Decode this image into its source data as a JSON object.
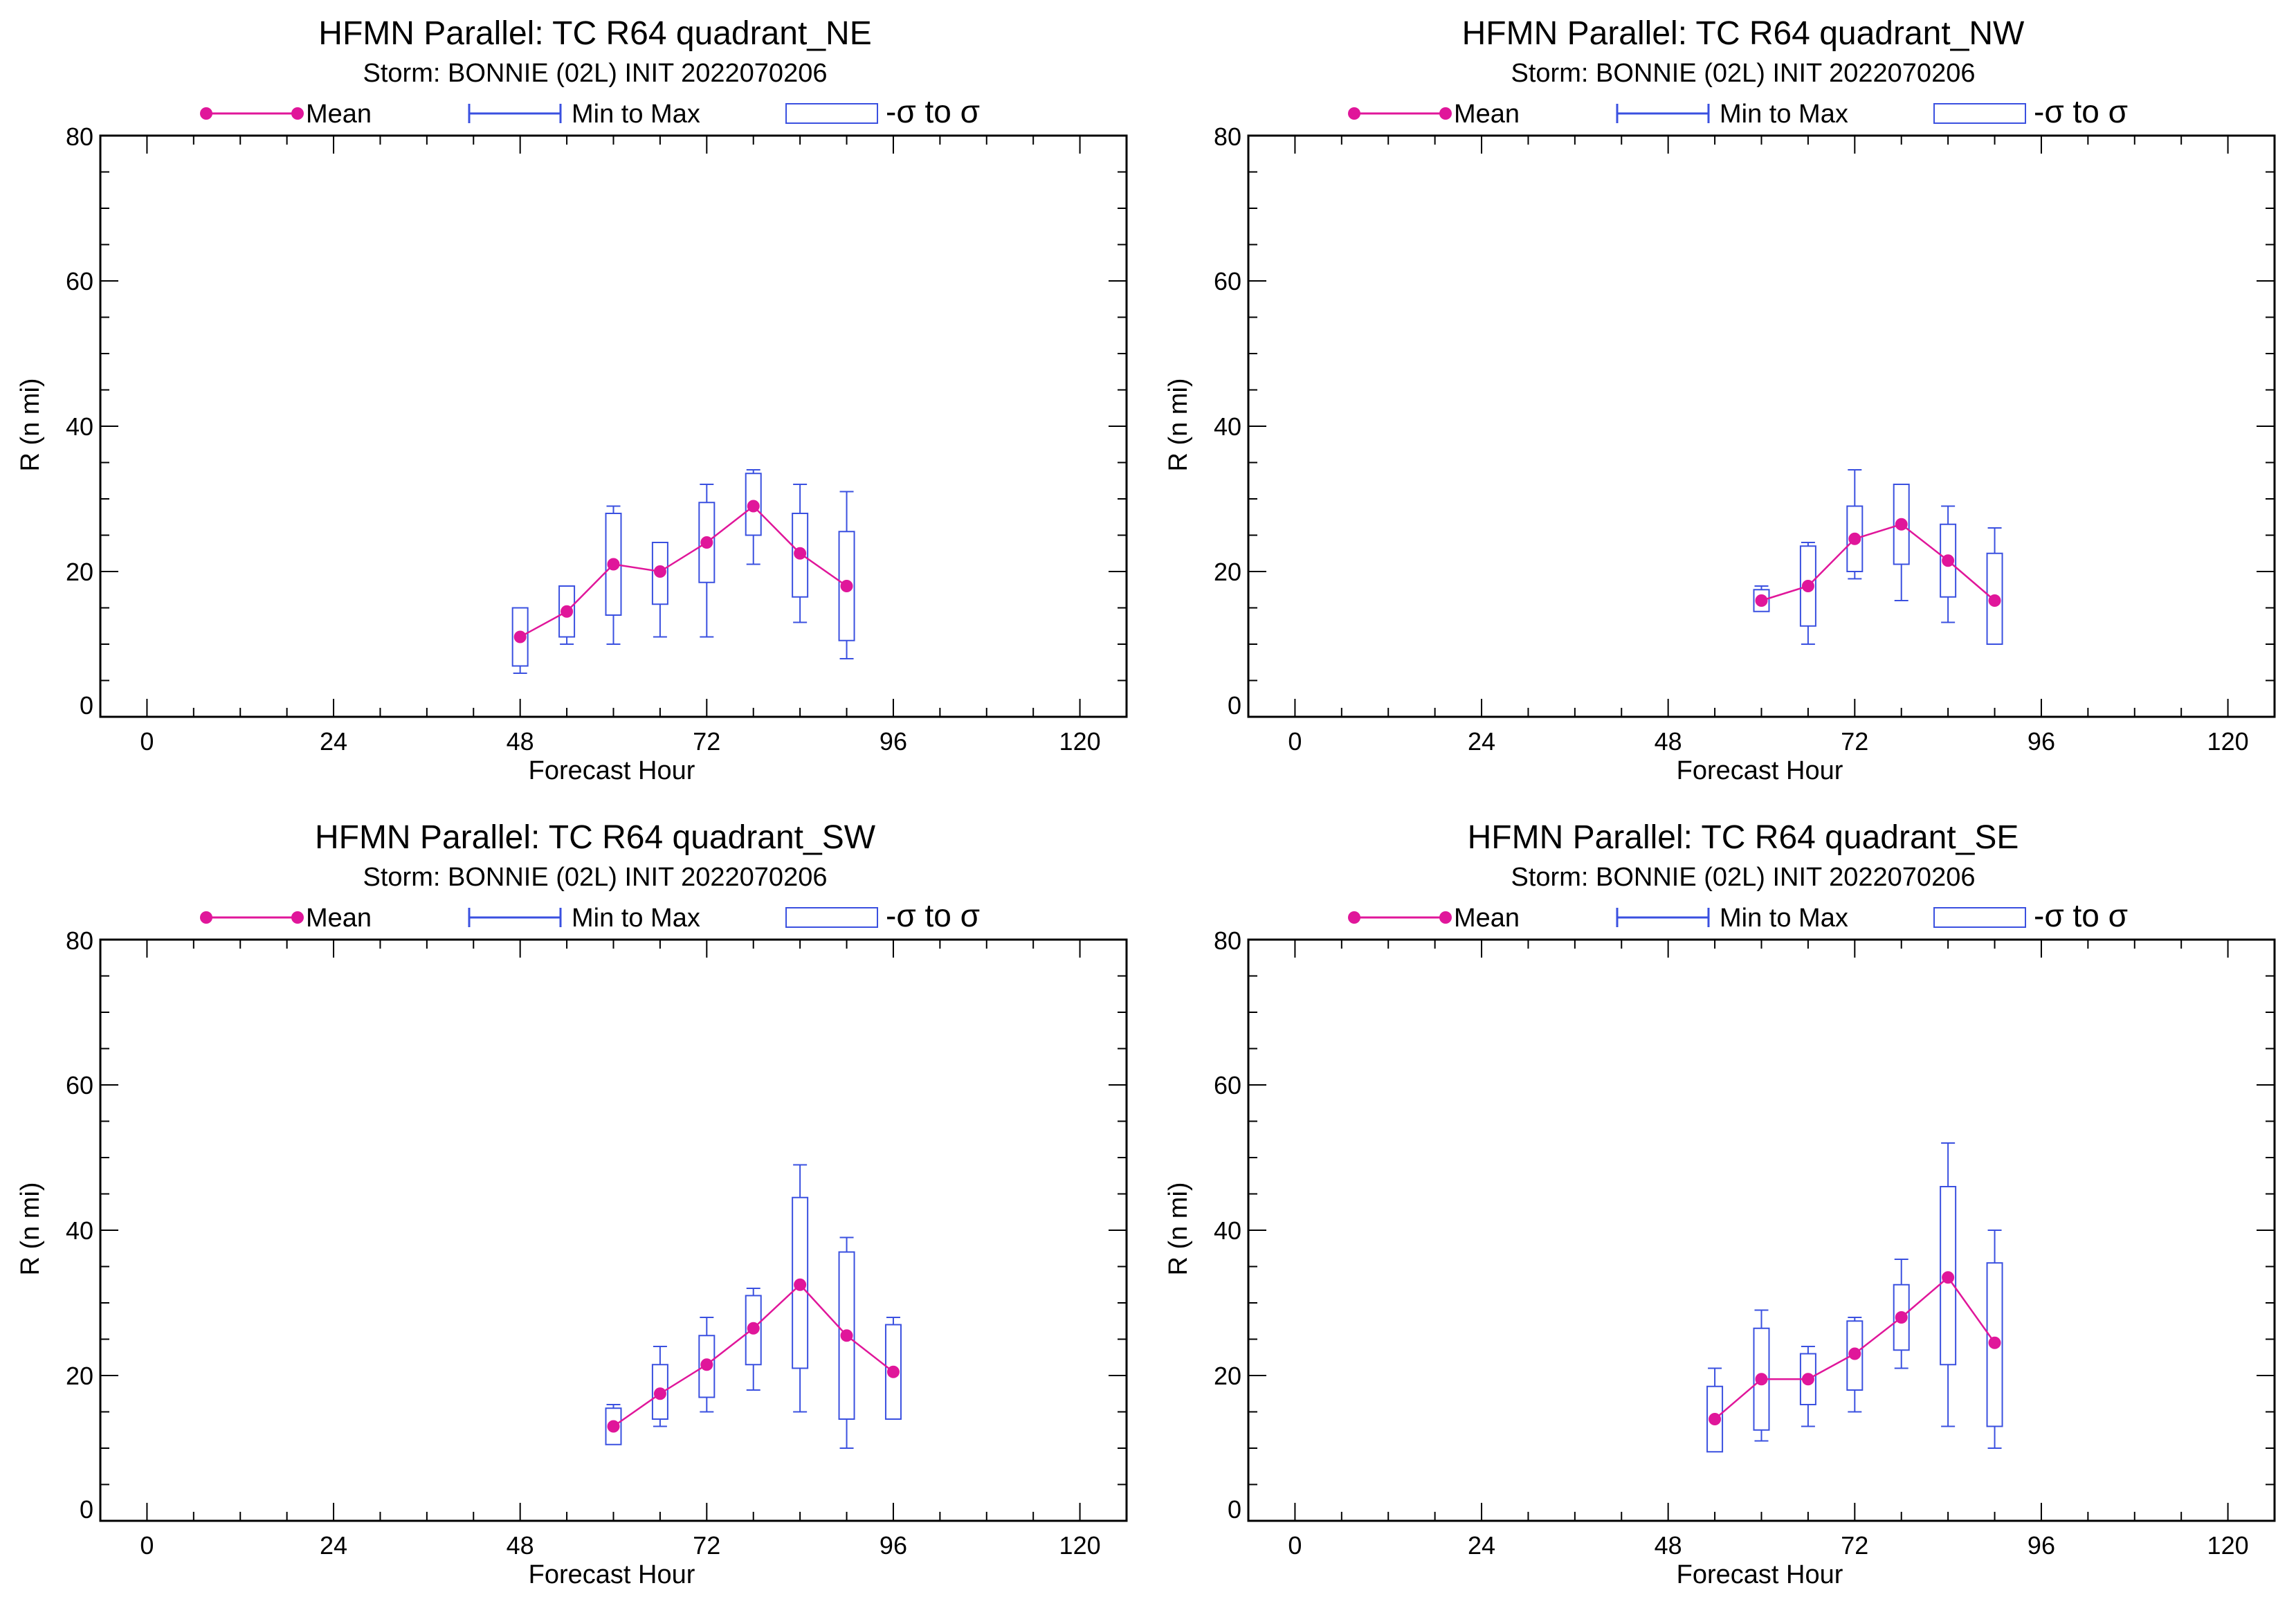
{
  "colors": {
    "mean": "#e0169a",
    "box": "#3a50e0",
    "axis": "#000000"
  },
  "legend": {
    "mean": "Mean",
    "minmax": "Min to Max",
    "sigma": "-σ to σ"
  },
  "chart_data": [
    {
      "type": "box",
      "title": "HFMN Parallel: TC  R64 quadrant_NE",
      "subtitle": "Storm: BONNIE (02L) INIT 2022070206",
      "xlabel": "Forecast Hour",
      "ylabel": "R (n mi)",
      "xlim": [
        -6,
        126
      ],
      "ylim": [
        0,
        80
      ],
      "xticks": [
        0,
        24,
        48,
        72,
        96,
        120
      ],
      "yticks": [
        0,
        20,
        40,
        60,
        80
      ],
      "x": [
        48,
        54,
        60,
        66,
        72,
        78,
        84,
        90
      ],
      "mean": [
        11,
        14.5,
        21,
        20,
        24,
        29,
        22.5,
        18
      ],
      "min": [
        6,
        10,
        10,
        11,
        11,
        21,
        13,
        8
      ],
      "max": [
        15,
        18,
        29,
        24,
        32,
        34,
        32,
        31
      ],
      "sd_low": [
        7,
        11,
        14,
        15.5,
        18.5,
        25,
        16.5,
        10.5
      ],
      "sd_high": [
        15,
        18,
        28,
        24,
        29.5,
        33.5,
        28,
        25.5
      ]
    },
    {
      "type": "box",
      "title": "HFMN Parallel: TC  R64 quadrant_NW",
      "subtitle": "Storm: BONNIE (02L) INIT 2022070206",
      "xlabel": "Forecast Hour",
      "ylabel": "R (n mi)",
      "xlim": [
        -6,
        126
      ],
      "ylim": [
        0,
        80
      ],
      "xticks": [
        0,
        24,
        48,
        72,
        96,
        120
      ],
      "yticks": [
        0,
        20,
        40,
        60,
        80
      ],
      "x": [
        60,
        66,
        72,
        78,
        84,
        90
      ],
      "mean": [
        16,
        18,
        24.5,
        26.5,
        21.5,
        16
      ],
      "min": [
        15,
        10,
        19,
        16,
        13,
        10
      ],
      "max": [
        18,
        24,
        34,
        32,
        29,
        26
      ],
      "sd_low": [
        14.5,
        12.5,
        20,
        21,
        16.5,
        10
      ],
      "sd_high": [
        17.5,
        23.5,
        29,
        32,
        26.5,
        22.5
      ]
    },
    {
      "type": "box",
      "title": "HFMN Parallel: TC  R64 quadrant_SW",
      "subtitle": "Storm: BONNIE (02L) INIT 2022070206",
      "xlabel": "Forecast Hour",
      "ylabel": "R (n mi)",
      "xlim": [
        -6,
        126
      ],
      "ylim": [
        0,
        80
      ],
      "xticks": [
        0,
        24,
        48,
        72,
        96,
        120
      ],
      "yticks": [
        0,
        20,
        40,
        60,
        80
      ],
      "x": [
        60,
        66,
        72,
        78,
        84,
        90,
        96
      ],
      "mean": [
        13,
        17.5,
        21.5,
        26.5,
        32.5,
        25.5,
        20.5
      ],
      "min": [
        11,
        13,
        15,
        18,
        15,
        10,
        15
      ],
      "max": [
        16,
        24,
        28,
        32,
        49,
        39,
        28
      ],
      "sd_low": [
        10.5,
        14,
        17,
        21.5,
        21,
        14,
        14
      ],
      "sd_high": [
        15.5,
        21.5,
        25.5,
        31,
        44.5,
        37,
        27
      ]
    },
    {
      "type": "box",
      "title": "HFMN Parallel: TC  R64 quadrant_SE",
      "subtitle": "Storm: BONNIE (02L) INIT 2022070206",
      "xlabel": "Forecast Hour",
      "ylabel": "R (n mi)",
      "xlim": [
        -6,
        126
      ],
      "ylim": [
        0,
        80
      ],
      "xticks": [
        0,
        24,
        48,
        72,
        96,
        120
      ],
      "yticks": [
        0,
        20,
        40,
        60,
        80
      ],
      "x": [
        54,
        60,
        66,
        72,
        78,
        84,
        90
      ],
      "mean": [
        14,
        19.5,
        19.5,
        23,
        28,
        33.5,
        24.5
      ],
      "min": [
        10,
        11,
        13,
        15,
        21,
        13,
        10
      ],
      "max": [
        21,
        29,
        24,
        28,
        36,
        52,
        40
      ],
      "sd_low": [
        9.5,
        12.5,
        16,
        18,
        23.5,
        21.5,
        13
      ],
      "sd_high": [
        18.5,
        26.5,
        23,
        27.5,
        32.5,
        46,
        35.5
      ]
    }
  ]
}
